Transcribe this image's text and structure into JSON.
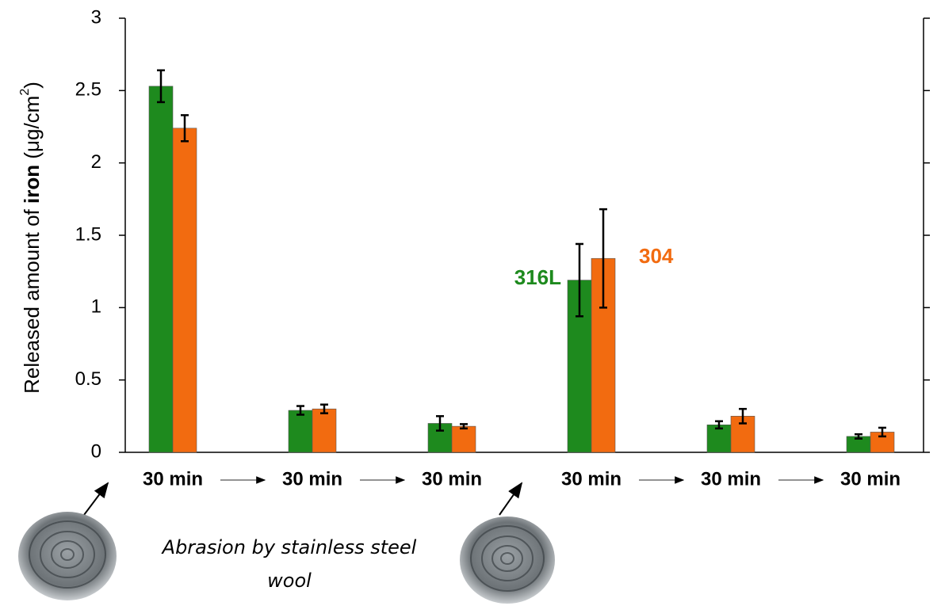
{
  "chart_data": {
    "type": "bar",
    "y_label_parts": [
      "Released amount of ",
      "iron",
      " (μg/cm",
      "2",
      ")"
    ],
    "categories": [
      "30 min",
      "30 min",
      "30 min",
      "30 min",
      "30 min",
      "30 min"
    ],
    "series": [
      {
        "name": "316L",
        "color": "#1e8a1e",
        "values": [
          2.53,
          0.29,
          0.2,
          1.19,
          0.19,
          0.11
        ],
        "errors": [
          0.11,
          0.03,
          0.05,
          0.25,
          0.025,
          0.015
        ]
      },
      {
        "name": "304",
        "color": "#f26b10",
        "values": [
          2.24,
          0.3,
          0.18,
          1.34,
          0.25,
          0.14
        ],
        "errors": [
          0.09,
          0.03,
          0.015,
          0.34,
          0.05,
          0.03
        ]
      }
    ],
    "ylim": [
      0,
      3
    ],
    "yticks": [
      0,
      0.5,
      1,
      1.5,
      2,
      2.5,
      3
    ],
    "annotation_lines": [
      "Abrasion by stainless steel",
      "wool"
    ]
  }
}
